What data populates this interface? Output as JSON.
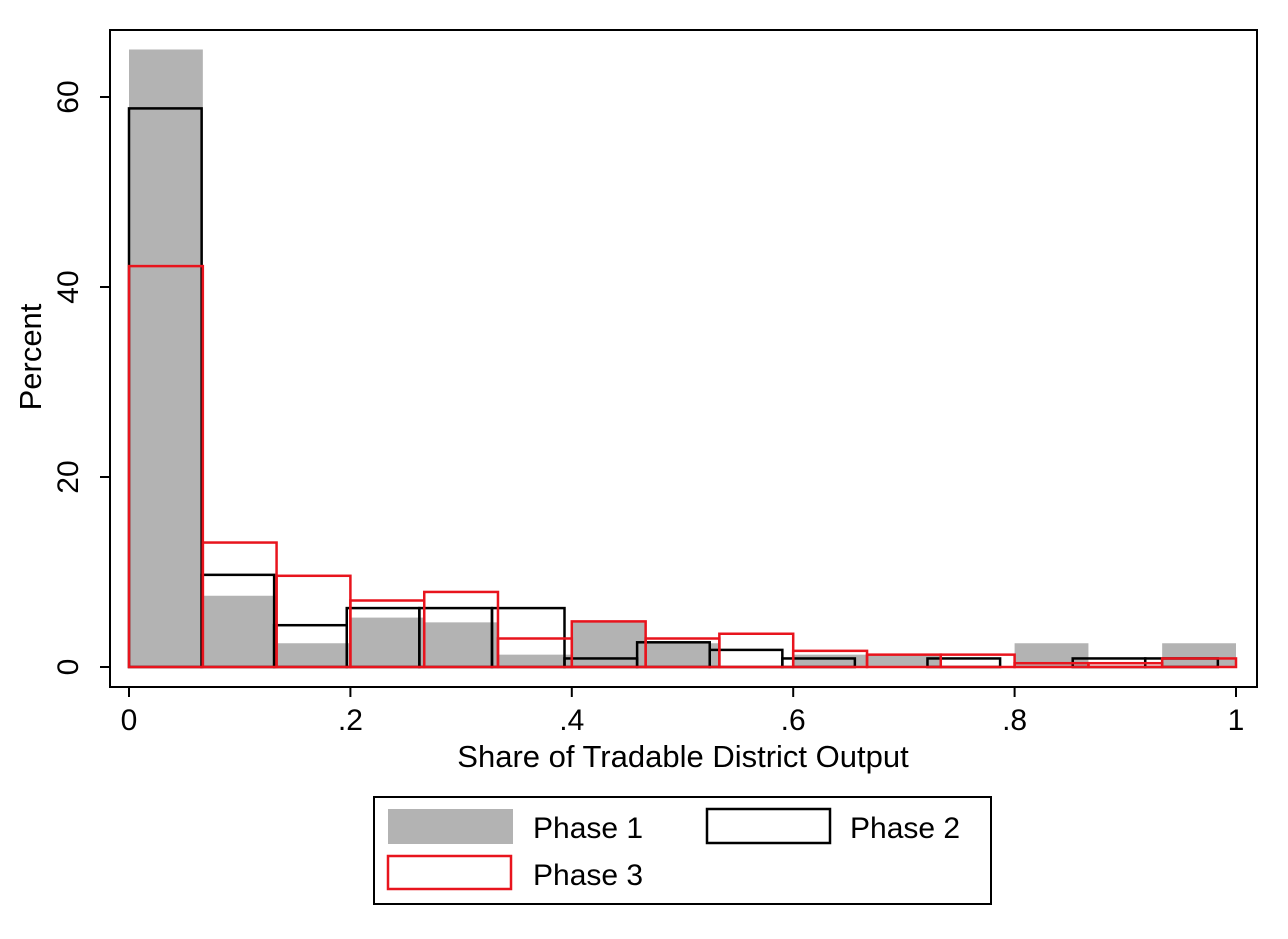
{
  "chart_data": {
    "type": "histogram",
    "xlabel": "Share of Tradable District Output",
    "ylabel": "Percent",
    "xlim": [
      0,
      1
    ],
    "ylim": [
      0,
      65
    ],
    "x_ticks": [
      {
        "value": 0,
        "label": "0"
      },
      {
        "value": 0.2,
        "label": ".2"
      },
      {
        "value": 0.4,
        "label": ".4"
      },
      {
        "value": 0.6,
        "label": ".6"
      },
      {
        "value": 0.8,
        "label": ".8"
      },
      {
        "value": 1,
        "label": "1"
      }
    ],
    "y_ticks": [
      {
        "value": 0,
        "label": "0"
      },
      {
        "value": 20,
        "label": "20"
      },
      {
        "value": 40,
        "label": "40"
      },
      {
        "value": 60,
        "label": "60"
      }
    ],
    "grid": false,
    "legend_position": "bottom",
    "series": [
      {
        "name": "Phase 1",
        "style": "filled",
        "fill": "#b3b3b3",
        "stroke": "none",
        "bin_width": 0.0667,
        "bins": [
          {
            "x0": 0.0,
            "x1": 0.0667,
            "value": 65
          },
          {
            "x0": 0.0667,
            "x1": 0.1333,
            "value": 7.5
          },
          {
            "x0": 0.1333,
            "x1": 0.2,
            "value": 2.5
          },
          {
            "x0": 0.2,
            "x1": 0.2667,
            "value": 5.2
          },
          {
            "x0": 0.2667,
            "x1": 0.3333,
            "value": 4.7
          },
          {
            "x0": 0.3333,
            "x1": 0.4,
            "value": 1.3
          },
          {
            "x0": 0.4,
            "x1": 0.4667,
            "value": 4.7
          },
          {
            "x0": 0.4667,
            "x1": 0.5333,
            "value": 2.5
          },
          {
            "x0": 0.5333,
            "x1": 0.6,
            "value": 0
          },
          {
            "x0": 0.6,
            "x1": 0.6667,
            "value": 1.3
          },
          {
            "x0": 0.6667,
            "x1": 0.7333,
            "value": 1.3
          },
          {
            "x0": 0.7333,
            "x1": 0.8,
            "value": 0
          },
          {
            "x0": 0.8,
            "x1": 0.8667,
            "value": 2.5
          },
          {
            "x0": 0.8667,
            "x1": 0.9333,
            "value": 0
          },
          {
            "x0": 0.9333,
            "x1": 1.0,
            "value": 2.5
          }
        ]
      },
      {
        "name": "Phase 2",
        "style": "outline",
        "fill": "none",
        "stroke": "#000000",
        "bin_width": 0.0656,
        "bins": [
          {
            "x0": 0.0,
            "x1": 0.0656,
            "value": 58.8
          },
          {
            "x0": 0.0656,
            "x1": 0.1311,
            "value": 9.7
          },
          {
            "x0": 0.1311,
            "x1": 0.1967,
            "value": 4.4
          },
          {
            "x0": 0.1967,
            "x1": 0.2623,
            "value": 6.2
          },
          {
            "x0": 0.2623,
            "x1": 0.3279,
            "value": 6.2
          },
          {
            "x0": 0.3279,
            "x1": 0.3934,
            "value": 6.2
          },
          {
            "x0": 0.3934,
            "x1": 0.459,
            "value": 0.9
          },
          {
            "x0": 0.459,
            "x1": 0.5246,
            "value": 2.6
          },
          {
            "x0": 0.5246,
            "x1": 0.5902,
            "value": 1.8
          },
          {
            "x0": 0.5902,
            "x1": 0.6557,
            "value": 0.9
          },
          {
            "x0": 0.6557,
            "x1": 0.7213,
            "value": 0
          },
          {
            "x0": 0.7213,
            "x1": 0.7869,
            "value": 0.9
          },
          {
            "x0": 0.7869,
            "x1": 0.8525,
            "value": 0
          },
          {
            "x0": 0.8525,
            "x1": 0.918,
            "value": 0.9
          },
          {
            "x0": 0.918,
            "x1": 0.9836,
            "value": 0.9
          }
        ]
      },
      {
        "name": "Phase 3",
        "style": "outline",
        "fill": "none",
        "stroke": "#e8141d",
        "bin_width": 0.0667,
        "bins": [
          {
            "x0": 0.0,
            "x1": 0.0667,
            "value": 42.2
          },
          {
            "x0": 0.0667,
            "x1": 0.1333,
            "value": 13.1
          },
          {
            "x0": 0.1333,
            "x1": 0.2,
            "value": 9.6
          },
          {
            "x0": 0.2,
            "x1": 0.2667,
            "value": 7
          },
          {
            "x0": 0.2667,
            "x1": 0.3333,
            "value": 7.9
          },
          {
            "x0": 0.3333,
            "x1": 0.4,
            "value": 3
          },
          {
            "x0": 0.4,
            "x1": 0.4667,
            "value": 4.8
          },
          {
            "x0": 0.4667,
            "x1": 0.5333,
            "value": 3
          },
          {
            "x0": 0.5333,
            "x1": 0.6,
            "value": 3.5
          },
          {
            "x0": 0.6,
            "x1": 0.6667,
            "value": 1.7
          },
          {
            "x0": 0.6667,
            "x1": 0.7333,
            "value": 1.3
          },
          {
            "x0": 0.7333,
            "x1": 0.8,
            "value": 1.3
          },
          {
            "x0": 0.8,
            "x1": 0.8667,
            "value": 0.4
          },
          {
            "x0": 0.8667,
            "x1": 0.9333,
            "value": 0.4
          },
          {
            "x0": 0.9333,
            "x1": 1.0,
            "value": 0.9
          }
        ]
      }
    ],
    "legend": [
      {
        "name": "Phase 1",
        "style": "filled",
        "color": "#b3b3b3"
      },
      {
        "name": "Phase 2",
        "style": "outline",
        "color": "#000000"
      },
      {
        "name": "Phase 3",
        "style": "outline",
        "color": "#e8141d"
      }
    ]
  }
}
